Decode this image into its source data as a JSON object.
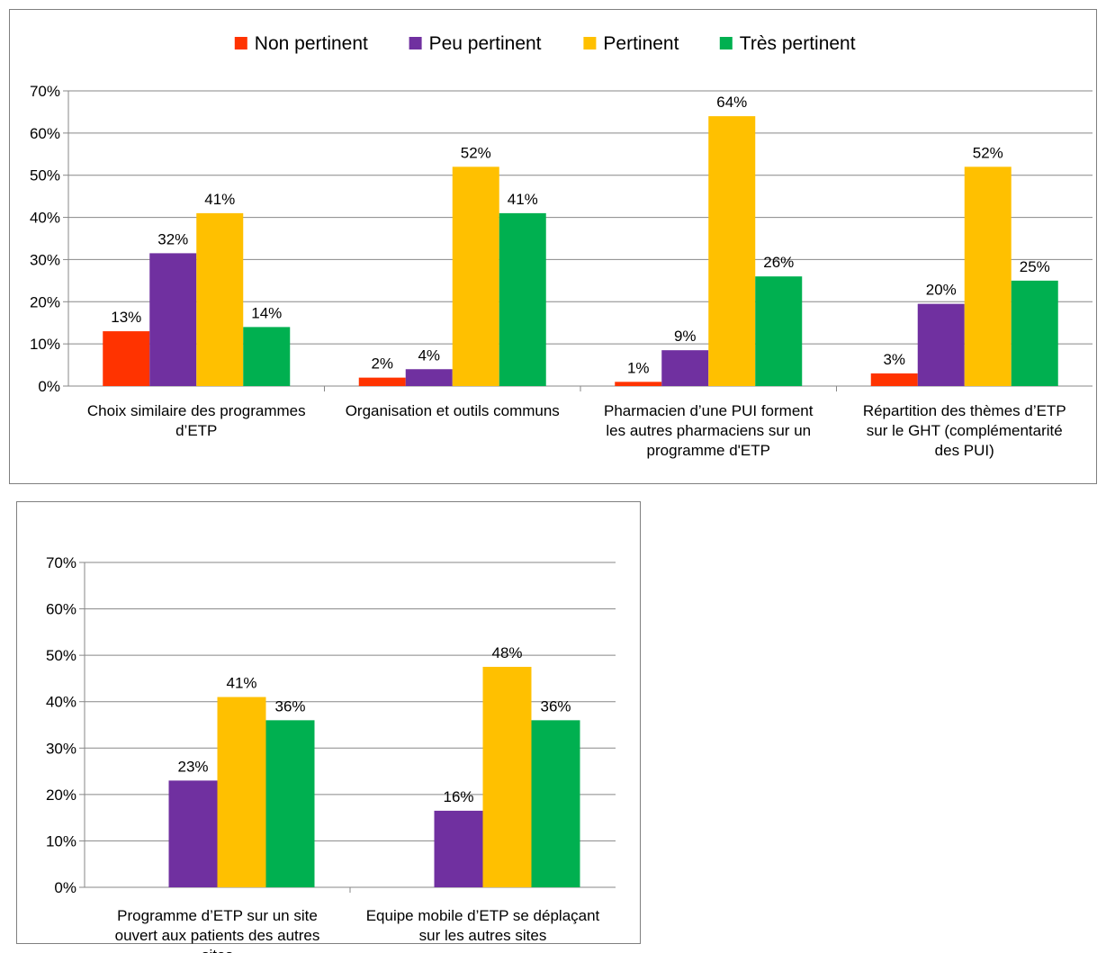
{
  "legend": {
    "placement": "top",
    "items": [
      {
        "name": "Non pertinent",
        "color": "#ff3300"
      },
      {
        "name": "Peu pertinent",
        "color": "#7030a0"
      },
      {
        "name": "Pertinent",
        "color": "#ffc000"
      },
      {
        "name": "Très pertinent",
        "color": "#00b050"
      }
    ]
  },
  "chart_data": [
    {
      "type": "bar",
      "title": "",
      "xlabel": "",
      "ylabel": "",
      "ylim": [
        0,
        70
      ],
      "yticks": [
        "0%",
        "10%",
        "20%",
        "30%",
        "40%",
        "50%",
        "60%",
        "70%"
      ],
      "grid": true,
      "legend": "top",
      "categories": [
        [
          "Choix similaire des programmes",
          "d’ETP"
        ],
        [
          "Organisation et outils communs"
        ],
        [
          "Pharmacien d’une PUI forment",
          "les autres pharmaciens sur un",
          "programme d'ETP"
        ],
        [
          "Répartition des thèmes d’ETP",
          "sur le GHT (complémentarité",
          "des PUI)"
        ]
      ],
      "series": [
        {
          "name": "Non pertinent",
          "color": "#ff3300",
          "values": [
            13,
            2,
            1,
            3
          ],
          "labels": [
            "13%",
            "2%",
            "1%",
            "3%"
          ]
        },
        {
          "name": "Peu pertinent",
          "color": "#7030a0",
          "values": [
            31.5,
            4,
            8.5,
            19.5
          ],
          "labels": [
            "32%",
            "4%",
            "9%",
            "20%"
          ]
        },
        {
          "name": "Pertinent",
          "color": "#ffc000",
          "values": [
            41,
            52,
            64,
            52
          ],
          "labels": [
            "41%",
            "52%",
            "64%",
            "52%"
          ]
        },
        {
          "name": "Très pertinent",
          "color": "#00b050",
          "values": [
            14,
            41,
            26,
            25
          ],
          "labels": [
            "14%",
            "41%",
            "26%",
            "25%"
          ]
        }
      ]
    },
    {
      "type": "bar",
      "title": "",
      "xlabel": "",
      "ylabel": "",
      "ylim": [
        0,
        70
      ],
      "yticks": [
        "0%",
        "10%",
        "20%",
        "30%",
        "40%",
        "50%",
        "60%",
        "70%"
      ],
      "grid": true,
      "legend": "none",
      "categories": [
        [
          "Programme d’ETP sur un site",
          "ouvert aux patients des autres",
          "sites"
        ],
        [
          "Equipe mobile d’ETP se déplaçant",
          "sur les autres sites"
        ]
      ],
      "series": [
        {
          "name": "Non pertinent",
          "color": "#ff3300",
          "values": [
            null,
            null
          ],
          "labels": [
            null,
            null
          ]
        },
        {
          "name": "Peu pertinent",
          "color": "#7030a0",
          "values": [
            23,
            16.5
          ],
          "labels": [
            "23%",
            "16%"
          ]
        },
        {
          "name": "Pertinent",
          "color": "#ffc000",
          "values": [
            41,
            47.5
          ],
          "labels": [
            "41%",
            "48%"
          ]
        },
        {
          "name": "Très pertinent",
          "color": "#00b050",
          "values": [
            36,
            36
          ],
          "labels": [
            "36%",
            "36%"
          ]
        }
      ]
    }
  ]
}
